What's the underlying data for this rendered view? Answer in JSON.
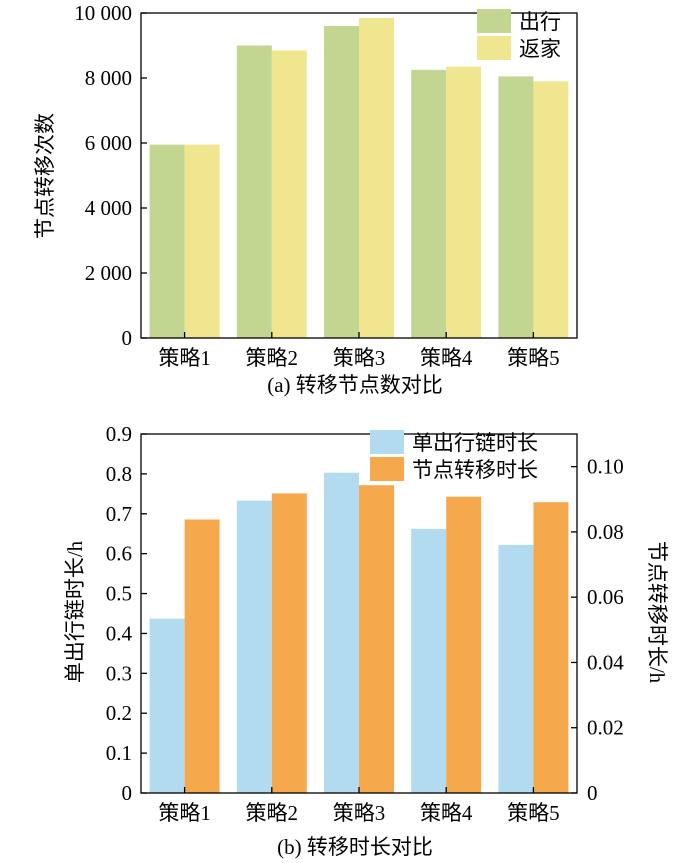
{
  "chart_data": [
    {
      "type": "bar",
      "categories": [
        "策略1",
        "策略2",
        "策略3",
        "策略4",
        "策略5"
      ],
      "ylabel": "节点转移次数",
      "ylim": [
        0,
        10000
      ],
      "yticks": [
        "0",
        "2 000",
        "4 000",
        "6 000",
        "8 000",
        "10 000"
      ],
      "caption": "(a)  转移节点数对比",
      "legend_position": "top-right",
      "series": [
        {
          "name": "出行",
          "color": "#c2d591",
          "values": [
            5950,
            9000,
            9600,
            8250,
            8050
          ]
        },
        {
          "name": "返家",
          "color": "#f0e68f",
          "values": [
            5950,
            8850,
            9850,
            8350,
            7900
          ]
        }
      ]
    },
    {
      "type": "bar",
      "categories": [
        "策略1",
        "策略2",
        "策略3",
        "策略4",
        "策略5"
      ],
      "ylabel": "单出行链时长/h",
      "ylim": [
        0,
        0.9
      ],
      "yticks": [
        "0",
        "0.1",
        "0.2",
        "0.3",
        "0.4",
        "0.5",
        "0.6",
        "0.7",
        "0.8",
        "0.9"
      ],
      "y2label": "节点转移时长/h",
      "y2lim": [
        0,
        0.11
      ],
      "y2ticks": [
        "0",
        "0.02",
        "0.04",
        "0.06",
        "0.08",
        "0.10"
      ],
      "caption": "(b)  转移时长对比",
      "legend_position": "top-right",
      "series": [
        {
          "name": "单出行链时长",
          "axis": "left",
          "color": "#b3dbf0",
          "values": [
            0.437,
            0.733,
            0.803,
            0.662,
            0.622
          ]
        },
        {
          "name": "节点转移时长",
          "axis": "right",
          "color": "#f6a84c",
          "values": [
            0.0838,
            0.0918,
            0.0943,
            0.0908,
            0.0891
          ]
        }
      ]
    }
  ]
}
